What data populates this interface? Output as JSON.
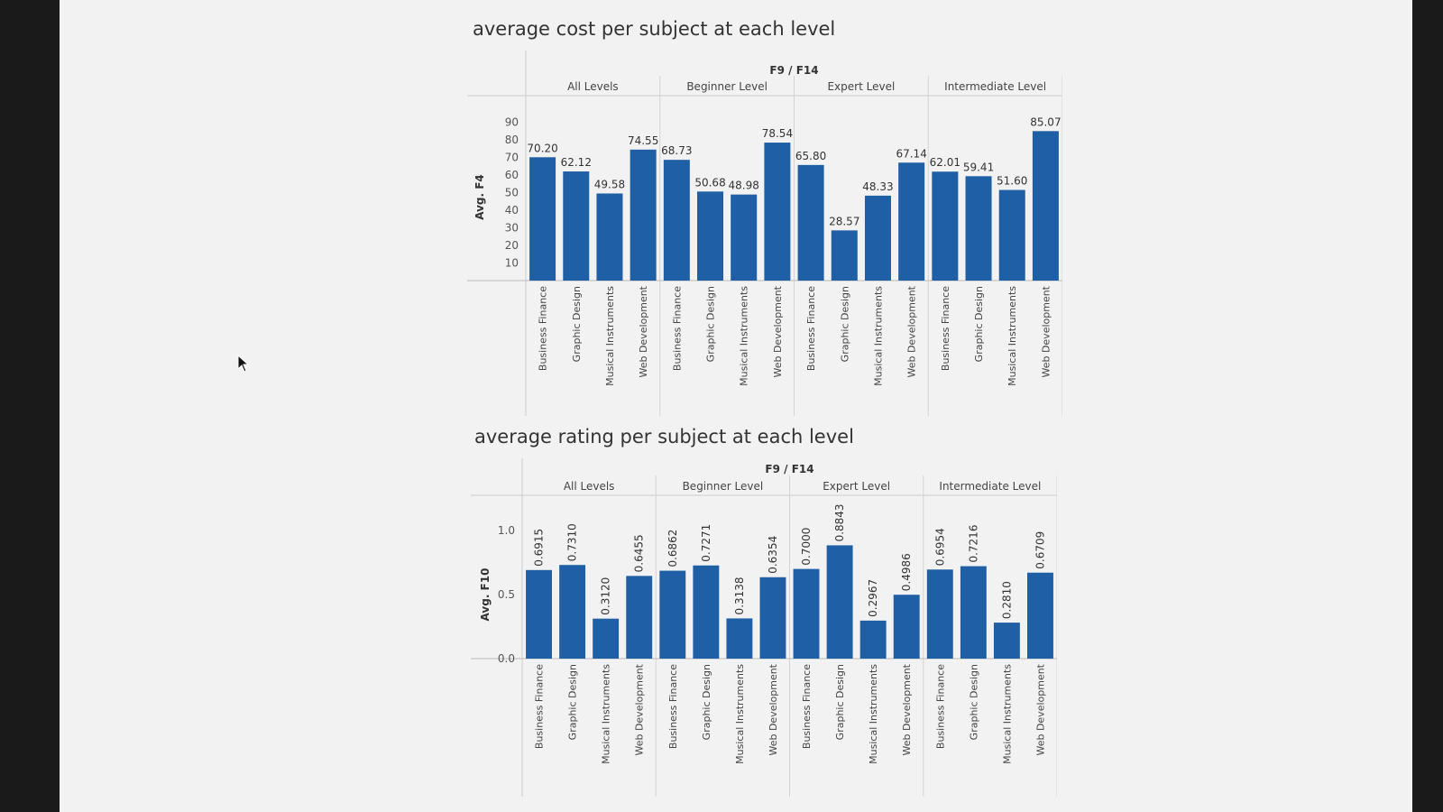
{
  "chart_data": [
    {
      "type": "bar",
      "title": "average cost per subject at each level",
      "header": "F9 / F14",
      "ylabel": "Avg. F4",
      "yticks": [
        "10",
        "20",
        "30",
        "40",
        "50",
        "60",
        "70",
        "80",
        "90"
      ],
      "ylim": [
        0,
        95
      ],
      "groups": [
        "All Levels",
        "Beginner Level",
        "Expert Level",
        "Intermediate Level"
      ],
      "categories": [
        "Business Finance",
        "Graphic Design",
        "Musical Instruments",
        "Web Development"
      ],
      "values": [
        70.2,
        62.12,
        49.58,
        74.55,
        68.73,
        50.68,
        48.98,
        78.54,
        65.8,
        28.57,
        48.33,
        67.14,
        62.01,
        59.41,
        51.6,
        85.07
      ],
      "labels": [
        "70.20",
        "62.12",
        "49.58",
        "74.55",
        "68.73",
        "50.68",
        "48.98",
        "78.54",
        "65.80",
        "28.57",
        "48.33",
        "67.14",
        "62.01",
        "59.41",
        "51.60",
        "85.07"
      ],
      "bar_color": "#1f5fa6"
    },
    {
      "type": "bar",
      "title": "average rating per subject at each level",
      "header": "F9 / F14",
      "ylabel": "Avg. F10",
      "yticks": [
        "0.0",
        "0.5",
        "1.0"
      ],
      "ylim": [
        0,
        1.0
      ],
      "groups": [
        "All Levels",
        "Beginner Level",
        "Expert Level",
        "Intermediate Level"
      ],
      "categories": [
        "Business Finance",
        "Graphic Design",
        "Musical Instruments",
        "Web Development"
      ],
      "values": [
        0.6915,
        0.731,
        0.312,
        0.6455,
        0.6862,
        0.7271,
        0.3138,
        0.6354,
        0.7,
        0.8843,
        0.2967,
        0.4986,
        0.6954,
        0.7216,
        0.281,
        0.6709
      ],
      "labels": [
        "0.6915",
        "0.7310",
        "0.3120",
        "0.6455",
        "0.6862",
        "0.7271",
        "0.3138",
        "0.6354",
        "0.7000",
        "0.8843",
        "0.2967",
        "0.4986",
        "0.6954",
        "0.7216",
        "0.2810",
        "0.6709"
      ],
      "bar_color": "#1f5fa6"
    }
  ]
}
